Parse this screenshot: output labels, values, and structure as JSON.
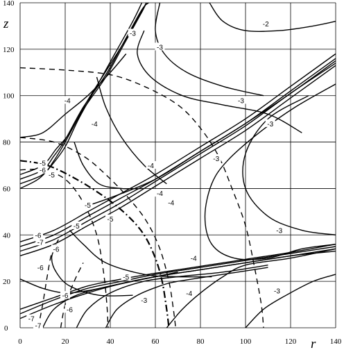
{
  "chart_data": {
    "type": "line",
    "xlabel": "r",
    "ylabel": "z",
    "xlim": [
      0,
      140
    ],
    "ylim": [
      0,
      140
    ],
    "grid": true,
    "x_ticks": [
      0,
      20,
      40,
      60,
      80,
      100,
      120,
      140
    ],
    "y_ticks": [
      0,
      20,
      40,
      60,
      80,
      100,
      120,
      140
    ],
    "solid_curves": [
      {
        "points": [
          [
            0,
            62
          ],
          [
            10,
            66
          ],
          [
            15,
            72
          ],
          [
            20,
            80
          ],
          [
            28,
            94
          ],
          [
            38,
            108
          ],
          [
            46,
            122
          ],
          [
            54,
            136
          ],
          [
            56,
            140
          ]
        ]
      },
      {
        "points": [
          [
            0,
            64
          ],
          [
            10,
            68
          ],
          [
            15,
            74
          ],
          [
            20,
            81
          ],
          [
            28,
            95
          ],
          [
            38,
            109
          ],
          [
            46,
            123
          ],
          [
            54,
            137
          ],
          [
            57,
            140
          ]
        ]
      },
      {
        "points": [
          [
            0,
            66
          ],
          [
            10,
            70
          ],
          [
            16,
            77
          ],
          [
            22,
            84
          ],
          [
            30,
            98
          ],
          [
            39,
            112
          ],
          [
            48,
            126
          ],
          [
            56,
            140
          ]
        ]
      },
      {
        "points": [
          [
            0,
            60
          ],
          [
            8,
            64
          ],
          [
            14,
            70
          ],
          [
            20,
            78
          ],
          [
            26,
            90
          ],
          [
            34,
            104
          ],
          [
            42,
            118
          ],
          [
            50,
            132
          ],
          [
            54,
            140
          ]
        ]
      },
      {
        "points": [
          [
            0,
            82
          ],
          [
            10,
            84
          ],
          [
            20,
            92
          ],
          [
            30,
            100
          ],
          [
            40,
            110
          ],
          [
            47,
            118
          ]
        ]
      },
      {
        "points": [
          [
            0,
            35
          ],
          [
            15,
            40
          ],
          [
            30,
            48
          ],
          [
            45,
            56
          ],
          [
            60,
            64
          ],
          [
            80,
            76
          ],
          [
            100,
            88
          ],
          [
            120,
            102
          ],
          [
            140,
            116
          ]
        ]
      },
      {
        "points": [
          [
            0,
            37
          ],
          [
            15,
            42
          ],
          [
            30,
            50
          ],
          [
            45,
            58
          ],
          [
            60,
            66
          ],
          [
            80,
            78
          ],
          [
            100,
            90
          ],
          [
            120,
            104
          ],
          [
            140,
            118
          ]
        ]
      },
      {
        "points": [
          [
            0,
            33
          ],
          [
            15,
            38
          ],
          [
            30,
            46
          ],
          [
            45,
            54
          ],
          [
            60,
            63
          ],
          [
            80,
            75
          ],
          [
            100,
            87
          ],
          [
            120,
            101
          ],
          [
            140,
            114
          ]
        ]
      },
      {
        "points": [
          [
            0,
            31
          ],
          [
            15,
            36
          ],
          [
            30,
            44
          ],
          [
            45,
            52
          ],
          [
            60,
            61
          ],
          [
            80,
            73
          ],
          [
            100,
            85
          ],
          [
            120,
            99
          ],
          [
            140,
            113
          ]
        ]
      },
      {
        "points": [
          [
            28,
            52
          ],
          [
            40,
            56
          ],
          [
            60,
            64
          ],
          [
            80,
            76
          ],
          [
            100,
            88
          ],
          [
            120,
            101
          ],
          [
            140,
            115
          ]
        ]
      },
      {
        "points": [
          [
            0,
            4
          ],
          [
            15,
            10
          ],
          [
            30,
            15
          ],
          [
            45,
            19
          ],
          [
            60,
            22
          ],
          [
            80,
            25
          ],
          [
            100,
            28
          ],
          [
            120,
            31
          ],
          [
            140,
            34
          ]
        ]
      },
      {
        "points": [
          [
            0,
            6
          ],
          [
            15,
            12
          ],
          [
            30,
            17
          ],
          [
            45,
            20
          ],
          [
            60,
            23
          ],
          [
            80,
            26
          ],
          [
            100,
            29
          ],
          [
            120,
            32
          ],
          [
            140,
            35
          ]
        ]
      },
      {
        "points": [
          [
            0,
            8
          ],
          [
            15,
            13
          ],
          [
            30,
            18
          ],
          [
            45,
            21
          ],
          [
            60,
            23.5
          ],
          [
            80,
            26.5
          ],
          [
            100,
            29.5
          ],
          [
            120,
            32.5
          ],
          [
            140,
            36
          ]
        ]
      },
      {
        "points": [
          [
            10,
            0
          ],
          [
            15,
            8
          ],
          [
            25,
            14
          ],
          [
            40,
            18
          ],
          [
            60,
            22
          ],
          [
            80,
            25
          ],
          [
            100,
            28
          ],
          [
            120,
            31
          ],
          [
            140,
            33
          ]
        ]
      },
      {
        "points": [
          [
            0,
            21
          ],
          [
            10,
            17
          ],
          [
            20,
            15
          ],
          [
            30,
            16
          ],
          [
            40,
            18
          ],
          [
            55,
            21
          ],
          [
            70,
            24
          ]
        ]
      },
      {
        "points": [
          [
            25,
            0
          ],
          [
            30,
            8
          ],
          [
            40,
            15
          ],
          [
            55,
            20
          ],
          [
            70,
            22
          ],
          [
            90,
            24
          ],
          [
            110,
            27
          ]
        ]
      },
      {
        "points": [
          [
            38,
            0
          ],
          [
            43,
            8
          ],
          [
            52,
            14
          ],
          [
            62,
            18
          ],
          [
            70,
            20
          ],
          [
            90,
            23
          ],
          [
            110,
            26
          ]
        ]
      },
      {
        "points": [
          [
            65,
            0
          ],
          [
            72,
            8
          ],
          [
            80,
            15
          ],
          [
            90,
            22
          ],
          [
            100,
            27
          ],
          [
            120,
            30
          ],
          [
            140,
            34
          ]
        ]
      },
      {
        "points": [
          [
            100,
            0
          ],
          [
            108,
            8
          ],
          [
            118,
            14
          ],
          [
            130,
            20
          ],
          [
            140,
            23
          ]
        ]
      },
      {
        "points": [
          [
            24,
            80
          ],
          [
            28,
            70
          ],
          [
            35,
            62
          ],
          [
            45,
            60
          ],
          [
            55,
            60
          ]
        ]
      },
      {
        "points": [
          [
            34,
            108
          ],
          [
            38,
            95
          ],
          [
            45,
            82
          ],
          [
            55,
            70
          ],
          [
            65,
            62
          ]
        ]
      },
      {
        "points": [
          [
            55,
            128
          ],
          [
            52,
            118
          ],
          [
            58,
            108
          ],
          [
            72,
            100
          ],
          [
            90,
            96
          ],
          [
            110,
            92
          ],
          [
            125,
            84
          ]
        ]
      },
      {
        "points": [
          [
            62,
            140
          ],
          [
            60,
            128
          ],
          [
            64,
            118
          ],
          [
            74,
            110
          ],
          [
            90,
            104
          ],
          [
            108,
            100
          ]
        ]
      },
      {
        "points": [
          [
            84,
            140
          ],
          [
            90,
            132
          ],
          [
            100,
            128
          ],
          [
            115,
            128
          ],
          [
            130,
            130
          ],
          [
            140,
            132
          ]
        ]
      },
      {
        "points": [
          [
            128,
            100
          ],
          [
            110,
            90
          ],
          [
            100,
            75
          ],
          [
            100,
            60
          ],
          [
            110,
            48
          ],
          [
            125,
            42
          ],
          [
            140,
            40
          ]
        ]
      },
      {
        "points": [
          [
            140,
            105
          ],
          [
            122,
            95
          ],
          [
            106,
            84
          ],
          [
            92,
            72
          ],
          [
            85,
            62
          ],
          [
            82,
            48
          ],
          [
            85,
            36
          ],
          [
            95,
            30
          ],
          [
            110,
            30
          ],
          [
            125,
            34
          ],
          [
            140,
            36
          ]
        ]
      },
      {
        "points": [
          [
            22,
            42
          ],
          [
            28,
            36
          ],
          [
            38,
            28
          ],
          [
            55,
            23
          ],
          [
            70,
            22
          ],
          [
            85,
            22
          ]
        ]
      },
      {
        "points": [
          [
            16,
            36
          ],
          [
            14,
            30
          ],
          [
            16,
            24
          ],
          [
            22,
            18
          ],
          [
            35,
            14
          ],
          [
            50,
            14
          ]
        ]
      }
    ],
    "dashed_curves": [
      {
        "points": [
          [
            0,
            112
          ],
          [
            20,
            111
          ],
          [
            40,
            109
          ],
          [
            55,
            104
          ],
          [
            70,
            96
          ],
          [
            80,
            86
          ],
          [
            88,
            74
          ],
          [
            94,
            60
          ],
          [
            100,
            44
          ],
          [
            104,
            26
          ],
          [
            107,
            10
          ],
          [
            108,
            0
          ]
        ]
      },
      {
        "points": [
          [
            0,
            82
          ],
          [
            15,
            80
          ],
          [
            28,
            74
          ],
          [
            38,
            66
          ],
          [
            48,
            56
          ],
          [
            56,
            46
          ],
          [
            62,
            34
          ],
          [
            66,
            20
          ],
          [
            68,
            8
          ],
          [
            69,
            0
          ]
        ]
      },
      {
        "points": [
          [
            0,
            68
          ],
          [
            10,
            68
          ],
          [
            20,
            64
          ],
          [
            28,
            54
          ],
          [
            34,
            40
          ],
          [
            37,
            24
          ],
          [
            38.5,
            10
          ],
          [
            39,
            0
          ]
        ]
      },
      {
        "points": [
          [
            8,
            0
          ],
          [
            10,
            10
          ],
          [
            12,
            22
          ],
          [
            14,
            32
          ],
          [
            17,
            38
          ]
        ]
      },
      {
        "points": [
          [
            18,
            0
          ],
          [
            20,
            10
          ],
          [
            24,
            20
          ],
          [
            28,
            28
          ]
        ]
      }
    ],
    "dashdot_curves": [
      {
        "points": [
          [
            0,
            72
          ],
          [
            12,
            70
          ],
          [
            25,
            64
          ],
          [
            38,
            56
          ],
          [
            48,
            48
          ],
          [
            55,
            40
          ],
          [
            60,
            30
          ],
          [
            63,
            20
          ],
          [
            65,
            8
          ],
          [
            66,
            0
          ]
        ]
      }
    ],
    "labels": [
      {
        "text": "-2",
        "r": 109,
        "z": 131
      },
      {
        "text": "-3",
        "r": 50,
        "z": 127
      },
      {
        "text": "-3",
        "r": 62,
        "z": 121
      },
      {
        "text": "-3",
        "r": 98,
        "z": 98
      },
      {
        "text": "-3",
        "r": 111,
        "z": 88
      },
      {
        "text": "-3",
        "r": 87,
        "z": 73
      },
      {
        "text": "-3",
        "r": 115,
        "z": 42
      },
      {
        "text": "-3",
        "r": 114,
        "z": 16
      },
      {
        "text": "-3",
        "r": 55,
        "z": 12
      },
      {
        "text": "-4",
        "r": 21,
        "z": 98
      },
      {
        "text": "-4",
        "r": 33,
        "z": 88
      },
      {
        "text": "-4",
        "r": 58,
        "z": 70
      },
      {
        "text": "-4",
        "r": 62,
        "z": 58
      },
      {
        "text": "-4",
        "r": 67,
        "z": 54
      },
      {
        "text": "-4",
        "r": 77,
        "z": 30
      },
      {
        "text": "-4",
        "r": 75,
        "z": 15
      },
      {
        "text": "-5",
        "r": 10,
        "z": 71
      },
      {
        "text": "-5",
        "r": 14,
        "z": 66
      },
      {
        "text": "-5",
        "r": 30,
        "z": 53
      },
      {
        "text": "-5",
        "r": 40,
        "z": 47
      },
      {
        "text": "-5",
        "r": 25,
        "z": 44
      },
      {
        "text": "-5",
        "r": 47,
        "z": 22
      },
      {
        "text": "-6",
        "r": 10,
        "z": 68
      },
      {
        "text": "-6",
        "r": 8,
        "z": 40
      },
      {
        "text": "-6",
        "r": 16,
        "z": 34
      },
      {
        "text": "-6",
        "r": 9,
        "z": 26
      },
      {
        "text": "-6",
        "r": 20,
        "z": 14
      },
      {
        "text": "-6",
        "r": 22,
        "z": 8
      },
      {
        "text": "-7",
        "r": 9,
        "z": 37
      },
      {
        "text": "-7",
        "r": 5,
        "z": 4
      },
      {
        "text": "-7",
        "r": 8,
        "z": 1
      }
    ]
  }
}
